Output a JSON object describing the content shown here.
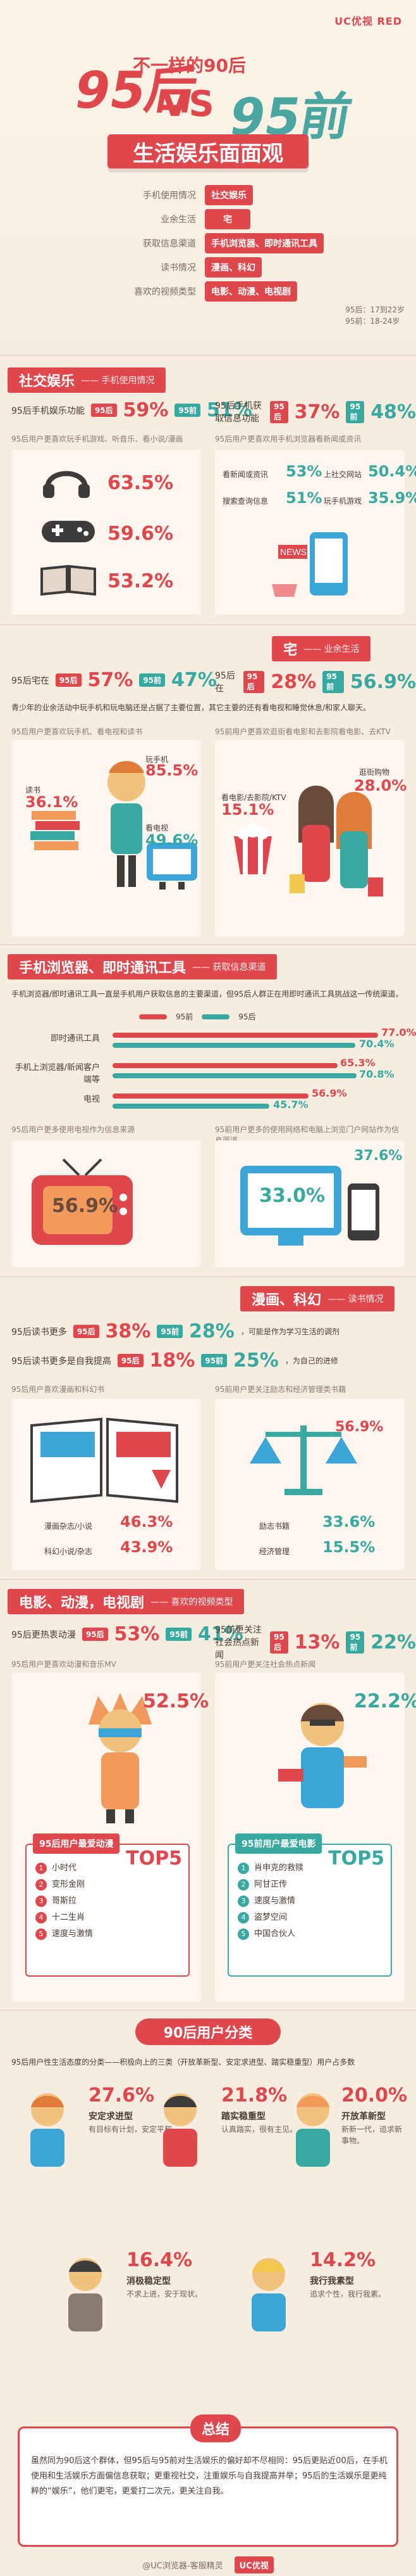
{
  "brand": {
    "logo": "UC优视 RED"
  },
  "hero": {
    "title_left": "95后",
    "vs": "VS",
    "title_right": "95前",
    "subtitle": "不一样的90后",
    "banner": "生活娱乐面面观"
  },
  "toc": [
    {
      "label": "手机使用情况",
      "pill": "社交娱乐",
      "color": "red"
    },
    {
      "label": "业余生活",
      "pill": "宅",
      "color": "red"
    },
    {
      "label": "获取信息渠道",
      "pill": "手机浏览器、即时通讯工具",
      "color": "red"
    },
    {
      "label": "读书情况",
      "pill": "漫画、科幻",
      "color": "red"
    },
    {
      "label": "喜欢的视频类型",
      "pill": "电影、动漫、电视剧",
      "color": "red"
    }
  ],
  "hero_note": {
    "line1": "95后：17到22岁",
    "line2": "95前：18-24岁"
  },
  "sections": {
    "s1": {
      "title": "社交娱乐",
      "sub": "—— 手机使用情况",
      "line_left": {
        "pre": "95后手机娱乐功能",
        "a_label": "95后",
        "a_val": "59%",
        "b_label": "95前",
        "b_val": "51%"
      },
      "line_right": {
        "pre": "95后手机获取信息功能",
        "a_label": "95后",
        "a_val": "37%",
        "b_label": "95前",
        "b_val": "48%"
      },
      "left_note": "95后用户更喜欢玩手机游戏、听音乐、看小说/漫画",
      "right_note": "95后用户更喜欢用手机浏览器看新闻或资讯",
      "left_items": [
        {
          "icon": "headphones-icon",
          "value": "63.5%"
        },
        {
          "icon": "gamepad-icon",
          "value": "59.6%"
        },
        {
          "icon": "book-icon",
          "value": "53.2%"
        }
      ],
      "right_items": [
        {
          "label": "看新闻或资讯",
          "value": "53%"
        },
        {
          "label": "搜索查询信息",
          "value": "51%"
        },
        {
          "label": "上社交网站",
          "value": "50.4%"
        },
        {
          "label": "玩手机游戏",
          "value": "35.9%"
        }
      ]
    },
    "s2": {
      "title": "宅",
      "sub": "—— 业余生活",
      "line_left": {
        "pre": "95后宅在",
        "a_label": "95后",
        "a_val": "57%",
        "b_label": "95前",
        "b_val": "47%"
      },
      "line_right": {
        "pre": "95后在",
        "a_label": "95后",
        "a_val": "28%",
        "b_label": "95前",
        "b_val": "56.9%"
      },
      "paragraph": "青少年的业余活动中玩手机和玩电脑还是占据了主要位置，其它主要的还有看电视和睡觉休息/和家人聊天。",
      "left_note": "95后用户更喜欢玩手机、看电视和读书",
      "right_note": "95前用户更喜欢逛街看电影和去影院看电影、去KTV",
      "left_items": [
        {
          "label": "读书",
          "value": "36.1%"
        },
        {
          "label": "玩手机",
          "value": "85.5%"
        },
        {
          "label": "看电视",
          "value": "49.6%"
        }
      ],
      "right_items": [
        {
          "label": "看电影/去影院/KTV",
          "value": "15.1%"
        },
        {
          "label": "逛街购物",
          "value": "28.0%"
        }
      ]
    },
    "s3": {
      "title": "手机浏览器、即时通讯工具",
      "sub": "—— 获取信息渠道",
      "paragraph": "手机浏览器/即时通讯工具一直是手机用户获取信息的主要渠道，但95后人群正在用即时通讯工具挑战这一传统渠道。",
      "legend_a": "95前",
      "legend_b": "95后",
      "bars": [
        {
          "label": "即时通讯工具",
          "a": "77.0%",
          "b": "70.4%"
        },
        {
          "label": "手机上浏览器/新闻客户端等",
          "a": "65.3%",
          "b": "70.8%"
        },
        {
          "label": "电视",
          "a": "56.9%",
          "b": "45.7%"
        }
      ],
      "left_note": "95后用户更多使用电视作为信息来源",
      "right_note": "95前用户更多的使用网络和电脑上浏览门户网站作为信息渠道",
      "tv_value": "56.9%",
      "screen_value": "33.0%",
      "phone_value": "37.6%"
    },
    "s4": {
      "title": "漫画、科幻",
      "sub": "—— 读书情况",
      "line1": {
        "pre": "95后读书更多",
        "a_label": "95后",
        "a_val": "38%",
        "b_label": "95前",
        "b_val": "28%",
        "post": "，可能是作为学习生活的调剂"
      },
      "line2": {
        "pre": "95后读书更多是自我提高",
        "a_label": "95后",
        "a_val": "18%",
        "b_label": "95前",
        "b_val": "25%",
        "post": "，为自己的进修"
      },
      "left_note": "95后用户喜欢漫画和科幻书",
      "right_note": "95前用户更关注励志和经济管理类书籍",
      "left_items": [
        {
          "label": "漫画杂志/小说",
          "value": "46.3%"
        },
        {
          "label": "科幻小说/杂志",
          "value": "43.9%"
        }
      ],
      "right_items": [
        {
          "label": "励志书籍",
          "value": "33.6%"
        },
        {
          "label": "经济管理",
          "value": "15.5%"
        },
        {
          "label": "",
          "value": "56.9%"
        }
      ]
    },
    "s5": {
      "title": "电影、动漫，电视剧",
      "sub": "—— 喜欢的视频类型",
      "line_left": {
        "pre": "95后更热衷动漫",
        "a_label": "95后",
        "a_val": "53%",
        "b_label": "95前",
        "b_val": "41%"
      },
      "line_right": {
        "pre": "95前更关注社会热点新闻",
        "a_label": "95后",
        "a_val": "13%",
        "b_label": "95前",
        "b_val": "22%"
      },
      "left_note": "95后用户更喜欢动漫和音乐MV",
      "right_note": "95前用户更关注社会热点新闻",
      "left_value": "52.5%",
      "right_value": "22.2%",
      "left_top5_title": "95后用户最爱动漫",
      "right_top5_title": "95前用户最爱电影",
      "top5_badge": "TOP5",
      "left_top5": [
        "小时代",
        "变形金刚",
        "哥斯拉",
        "十二生肖",
        "速度与激情"
      ],
      "right_top5": [
        "肖申克的救赎",
        "阿甘正传",
        "速度与激情",
        "盗梦空间",
        "中国合伙人"
      ]
    },
    "s6": {
      "title": "90后用户分类",
      "paragraph": "95后用户性生活态度的分类——积极向上的三类（开放革新型、安定求进型、踏实稳重型）用户占多数",
      "personas": [
        {
          "pct": "27.6%",
          "title": "安定求进型",
          "desc": "有目标有计划，安定平和。"
        },
        {
          "pct": "21.8%",
          "title": "踏实稳重型",
          "desc": "认真踏实，很有主见。"
        },
        {
          "pct": "20.0%",
          "title": "开放革新型",
          "desc": "新新一代，追求新事物。"
        },
        {
          "pct": "16.4%",
          "title": "消极稳定型",
          "desc": "不求上进，安于现状。"
        },
        {
          "pct": "14.2%",
          "title": "我行我素型",
          "desc": "追求个性，我行我素。"
        }
      ]
    }
  },
  "summary": {
    "title": "总结",
    "text": "虽然同为90后这个群体，但95后与95前对生活娱乐的偏好却不尽相同：95后更贴近00后，在手机使用和生活娱乐方面偏信息获取；更重视社交，注重娱乐与自我提高并举；95后的生活娱乐是更纯粹的“娱乐”，他们更宅，更爱打二次元，更关注自我。"
  },
  "footer": {
    "left": "@UC浏览器-客服精灵",
    "right": "UC优视"
  },
  "colors": {
    "red": "#e0474c",
    "teal": "#37a9a0",
    "bg": "#f6ede0"
  }
}
